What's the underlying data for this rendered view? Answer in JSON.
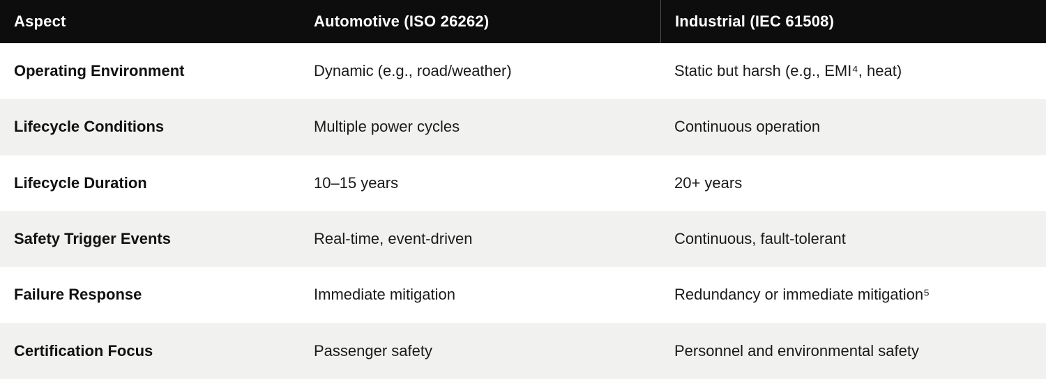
{
  "colors": {
    "header_bg": "#0d0d0d",
    "header_text": "#ffffff",
    "header_divider": "#4d4d4d",
    "row_bg": "#ffffff",
    "row_alt_bg": "#f1f1f0",
    "body_text": "#1a1a1a"
  },
  "table": {
    "columns": {
      "aspect": "Aspect",
      "automotive": "Automotive (ISO 26262)",
      "industrial": "Industrial (IEC 61508)"
    },
    "rows": [
      {
        "aspect": "Operating Environment",
        "automotive": "Dynamic (e.g., road/weather)",
        "industrial": "Static but harsh (e.g., EMI⁴, heat)"
      },
      {
        "aspect": "Lifecycle Conditions",
        "automotive": "Multiple power cycles",
        "industrial": "Continuous operation"
      },
      {
        "aspect": "Lifecycle Duration",
        "automotive": "10–15 years",
        "industrial": "20+ years"
      },
      {
        "aspect": "Safety Trigger Events",
        "automotive": "Real-time, event-driven",
        "industrial": "Continuous, fault-tolerant"
      },
      {
        "aspect": "Failure Response",
        "automotive": "Immediate mitigation",
        "industrial": "Redundancy or immediate mitigation⁵"
      },
      {
        "aspect": "Certification Focus",
        "automotive": "Passenger safety",
        "industrial": "Personnel and environmental safety"
      }
    ]
  }
}
